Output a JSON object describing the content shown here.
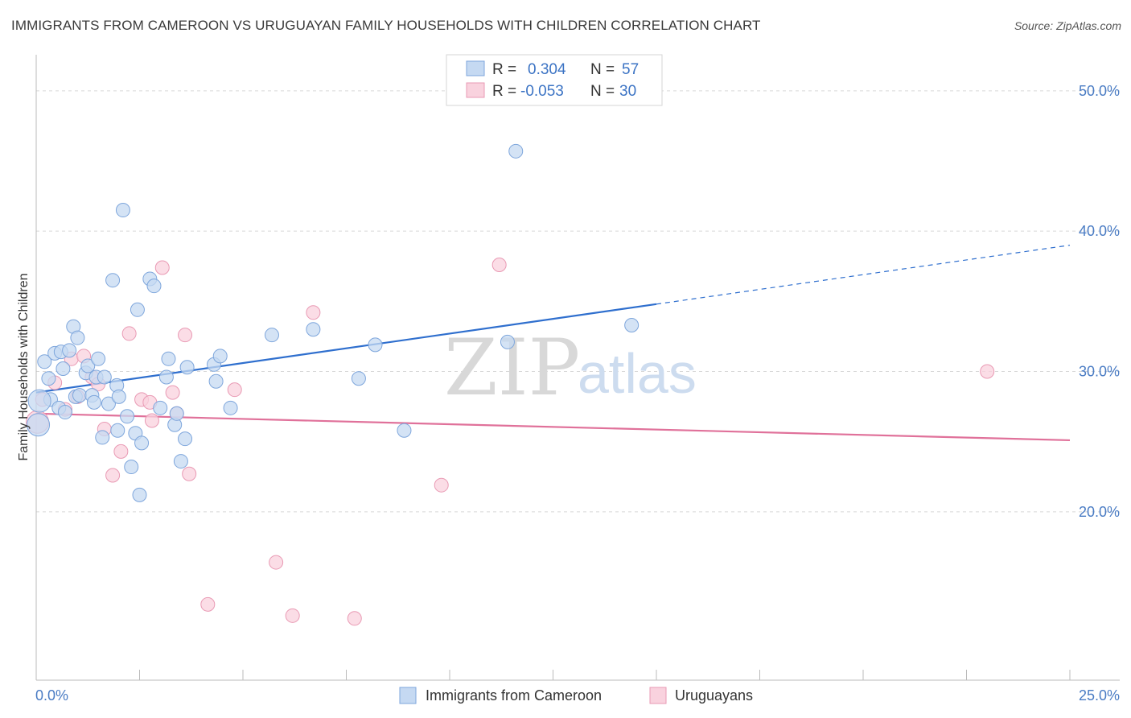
{
  "title": "IMMIGRANTS FROM CAMEROON VS URUGUAYAN FAMILY HOUSEHOLDS WITH CHILDREN CORRELATION CHART",
  "source": "Source: ZipAtlas.com",
  "watermark": {
    "zip": "ZIP",
    "atlas": "atlas"
  },
  "colors": {
    "blue_fill": "#c5d9f2",
    "blue_stroke": "#7ea6dc",
    "blue_line": "#2f6fce",
    "pink_fill": "#f9d2de",
    "pink_stroke": "#e99ab4",
    "pink_line": "#e0719a",
    "tick_text": "#4a7cc4",
    "grid": "#d8d8d8"
  },
  "stats": {
    "series1": {
      "r_label": "R =",
      "r_value": "0.304",
      "n_label": "N =",
      "n_value": "57"
    },
    "series2": {
      "r_label": "R =",
      "r_value": "-0.053",
      "n_label": "N =",
      "n_value": "30"
    }
  },
  "chart_data": {
    "type": "scatter",
    "title": "IMMIGRANTS FROM CAMEROON VS URUGUAYAN FAMILY HOUSEHOLDS WITH CHILDREN CORRELATION CHART",
    "xlabel": "",
    "ylabel": "Family Households with Children",
    "xlim": [
      0,
      25
    ],
    "ylim": [
      8,
      52
    ],
    "x_tick_labels": [
      "0.0%",
      "25.0%"
    ],
    "y_ticks": [
      20,
      30,
      40,
      50
    ],
    "y_tick_labels": [
      "20.0%",
      "30.0%",
      "40.0%",
      "50.0%"
    ],
    "grid": true,
    "legend_position": "bottom",
    "series": [
      {
        "name": "Immigrants from Cameroon",
        "color": "#7ea6dc",
        "points": [
          [
            0.05,
            26.2
          ],
          [
            0.2,
            30.7
          ],
          [
            0.3,
            29.5
          ],
          [
            0.35,
            28.0
          ],
          [
            0.45,
            31.3
          ],
          [
            0.55,
            27.4
          ],
          [
            0.6,
            31.4
          ],
          [
            0.65,
            30.2
          ],
          [
            0.7,
            27.1
          ],
          [
            0.8,
            31.5
          ],
          [
            0.9,
            33.2
          ],
          [
            0.95,
            28.2
          ],
          [
            1.0,
            32.4
          ],
          [
            1.05,
            28.3
          ],
          [
            1.2,
            29.9
          ],
          [
            1.25,
            30.4
          ],
          [
            1.35,
            28.3
          ],
          [
            1.4,
            27.8
          ],
          [
            1.45,
            29.6
          ],
          [
            1.5,
            30.9
          ],
          [
            1.6,
            25.3
          ],
          [
            1.65,
            29.6
          ],
          [
            1.75,
            27.7
          ],
          [
            1.85,
            36.5
          ],
          [
            1.95,
            29.0
          ],
          [
            1.97,
            25.8
          ],
          [
            2.0,
            28.2
          ],
          [
            2.1,
            41.5
          ],
          [
            2.2,
            26.8
          ],
          [
            2.3,
            23.2
          ],
          [
            2.4,
            25.6
          ],
          [
            2.45,
            34.4
          ],
          [
            2.5,
            21.2
          ],
          [
            2.55,
            24.9
          ],
          [
            2.75,
            36.6
          ],
          [
            2.85,
            36.1
          ],
          [
            3.0,
            27.4
          ],
          [
            3.15,
            29.6
          ],
          [
            3.2,
            30.9
          ],
          [
            3.35,
            26.2
          ],
          [
            3.4,
            27.0
          ],
          [
            3.5,
            23.6
          ],
          [
            3.6,
            25.2
          ],
          [
            3.65,
            30.3
          ],
          [
            4.3,
            30.5
          ],
          [
            4.35,
            29.3
          ],
          [
            4.45,
            31.1
          ],
          [
            4.7,
            27.4
          ],
          [
            5.7,
            32.6
          ],
          [
            6.7,
            33.0
          ],
          [
            7.8,
            29.5
          ],
          [
            8.2,
            31.9
          ],
          [
            8.9,
            25.8
          ],
          [
            11.4,
            32.1
          ],
          [
            11.6,
            45.7
          ],
          [
            14.4,
            33.3
          ],
          [
            0.08,
            27.9
          ]
        ]
      },
      {
        "name": "Uruguayans",
        "color": "#e99ab4",
        "points": [
          [
            0.03,
            26.4
          ],
          [
            0.15,
            28.0
          ],
          [
            0.45,
            29.2
          ],
          [
            0.7,
            27.3
          ],
          [
            0.85,
            30.9
          ],
          [
            1.0,
            28.2
          ],
          [
            1.15,
            31.1
          ],
          [
            1.35,
            29.6
          ],
          [
            1.5,
            29.1
          ],
          [
            1.65,
            25.9
          ],
          [
            1.85,
            22.6
          ],
          [
            2.05,
            24.3
          ],
          [
            2.25,
            32.7
          ],
          [
            2.55,
            28.0
          ],
          [
            2.75,
            27.8
          ],
          [
            2.8,
            26.5
          ],
          [
            3.05,
            37.4
          ],
          [
            3.3,
            28.5
          ],
          [
            3.4,
            27.0
          ],
          [
            3.6,
            32.6
          ],
          [
            3.7,
            22.7
          ],
          [
            4.15,
            13.4
          ],
          [
            4.8,
            28.7
          ],
          [
            5.8,
            16.4
          ],
          [
            6.2,
            12.6
          ],
          [
            6.7,
            34.2
          ],
          [
            7.7,
            12.4
          ],
          [
            9.8,
            21.9
          ],
          [
            11.2,
            37.6
          ],
          [
            23.0,
            30.0
          ]
        ]
      }
    ],
    "trendlines": [
      {
        "series": "Immigrants from Cameroon",
        "x": [
          0,
          15.0
        ],
        "y": [
          28.5,
          34.8
        ],
        "dashed_extension_to": [
          25.0,
          39.0
        ]
      },
      {
        "series": "Uruguayans",
        "x": [
          0,
          25.0
        ],
        "y": [
          27.0,
          25.1
        ]
      }
    ]
  }
}
